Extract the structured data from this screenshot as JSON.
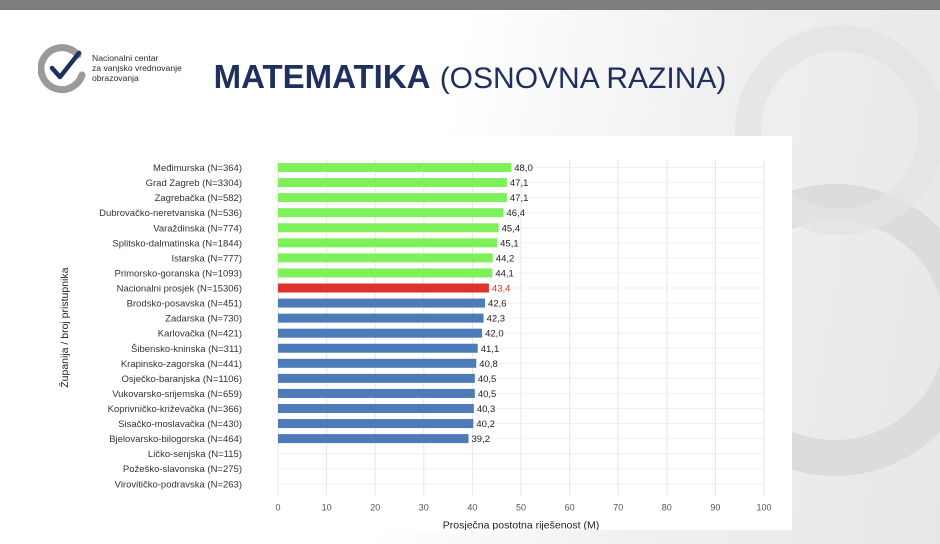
{
  "logo": {
    "line1": "Nacionalni centar",
    "line2": "za vanjsko vrednovanje",
    "line3": "obrazovanja"
  },
  "title": {
    "main": "MATEMATIKA",
    "sub": "(OSNOVNA RAZINA)"
  },
  "colors": {
    "above_average": "#7ef05a",
    "national_average": "#e0322c",
    "below_average": "#4d7bb8",
    "title": "#1f2f5e"
  },
  "chart_data": {
    "type": "bar",
    "orientation": "horizontal",
    "xlabel": "Prosječna postotna riješenost (M)",
    "ylabel": "Županija / broj pristupnika",
    "xlim": [
      0,
      100
    ],
    "xticks": [
      0,
      10,
      20,
      30,
      40,
      50,
      60,
      70,
      80,
      90,
      100
    ],
    "grid": true,
    "categories": [
      "Međimurska (N=364)",
      "Grad Zagreb (N=3304)",
      "Zagrebačka (N=582)",
      "Dubrovačko-neretvanska (N=536)",
      "Varaždinska (N=774)",
      "Splitsko-dalmatinska (N=1844)",
      "Istarska (N=777)",
      "Primorsko-goranska (N=1093)",
      "Nacionalni prosjek (N=15306)",
      "Brodsko-posavska (N=451)",
      "Zadarska (N=730)",
      "Karlovačka (N=421)",
      "Šibensko-kninska (N=311)",
      "Krapinsko-zagorska (N=441)",
      "Osječko-baranjska (N=1106)",
      "Vukovarsko-srijemska (N=659)",
      "Koprivničko-križevačka (N=366)",
      "Sisačko-moslavačka (N=430)",
      "Bjelovarsko-bilogorska (N=464)",
      "Ličko-senjska (N=115)",
      "Požeško-slavonska (N=275)",
      "Virovitičko-podravska (N=263)"
    ],
    "values": [
      48.0,
      47.1,
      47.1,
      46.4,
      45.4,
      45.1,
      44.2,
      44.1,
      43.4,
      42.6,
      42.3,
      42.0,
      41.1,
      40.8,
      40.5,
      40.5,
      40.3,
      40.2,
      39.2,
      null,
      null,
      null
    ],
    "value_labels": [
      "48,0",
      "47,1",
      "47,1",
      "46,4",
      "45,4",
      "45,1",
      "44,2",
      "44,1",
      "43,4",
      "42,6",
      "42,3",
      "42,0",
      "41,1",
      "40,8",
      "40,5",
      "40,5",
      "40,3",
      "40,2",
      "39,2",
      "",
      "",
      ""
    ],
    "groups": [
      "above",
      "above",
      "above",
      "above",
      "above",
      "above",
      "above",
      "above",
      "average",
      "below",
      "below",
      "below",
      "below",
      "below",
      "below",
      "below",
      "below",
      "below",
      "below",
      "none",
      "none",
      "none"
    ]
  }
}
